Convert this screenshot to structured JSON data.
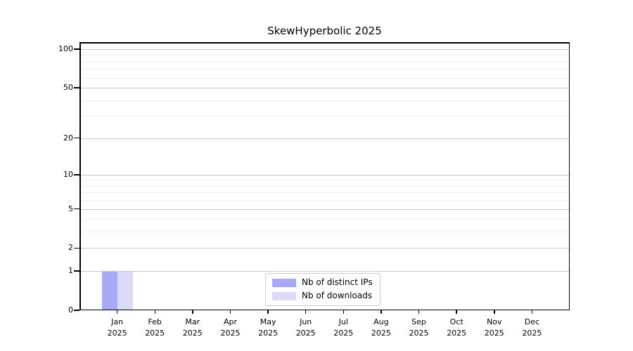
{
  "chart_data": {
    "type": "bar",
    "title": "SkewHyperbolic 2025",
    "categories": [
      "Jan",
      "Feb",
      "Mar",
      "Apr",
      "May",
      "Jun",
      "Jul",
      "Aug",
      "Sep",
      "Oct",
      "Nov",
      "Dec"
    ],
    "x_axis": {
      "year_label": "2025"
    },
    "y_axis": {
      "scale": "log1p",
      "major_ticks": [
        0,
        1,
        2,
        5,
        10,
        20,
        50,
        100
      ],
      "minor_gridlines": [
        3,
        4,
        6,
        7,
        8,
        9,
        30,
        40,
        60,
        70,
        80,
        90
      ],
      "ylim": [
        0,
        114
      ]
    },
    "series": [
      {
        "name": "Nb of distinct IPs",
        "color": "#a8a8f4",
        "values": [
          1,
          0,
          0,
          0,
          0,
          0,
          0,
          0,
          0,
          0,
          0,
          0
        ]
      },
      {
        "name": "Nb of downloads",
        "color": "#dbdbf9",
        "values": [
          1,
          0,
          0,
          0,
          0,
          0,
          0,
          0,
          0,
          0,
          0,
          0
        ]
      }
    ],
    "legend": {
      "position": "lower center"
    },
    "grid": true
  },
  "colors": {
    "background": "#ffffff",
    "axis": "#000000",
    "text": "#000000",
    "major_grid": "#c8c8c8",
    "minor_grid": "#eeeeee",
    "legend_border": "#cccccc"
  }
}
